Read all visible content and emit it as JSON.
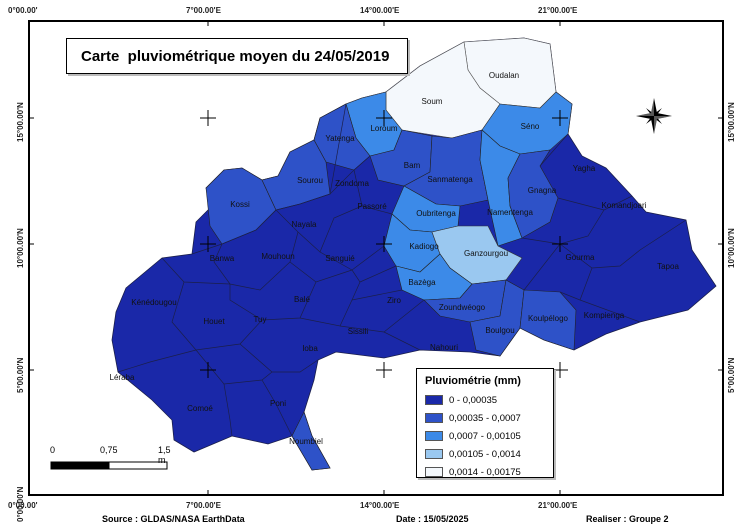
{
  "title": "Carte  pluviométrique moyen du 24/05/2019",
  "grid": {
    "top": [
      "0°00.00'",
      "7°00.00'E",
      "14°00.00'E",
      "21°00.00'E"
    ],
    "bottom": [
      "0°00.00'",
      "7°00.00'E",
      "14°00.00'E",
      "21°00.00'E"
    ],
    "left": [
      "15°00.00'N",
      "10°00.00'N",
      "5°00.00'N",
      "0°00.00'N"
    ],
    "right": [
      "15°00.00'N",
      "10°00.00'N",
      "5°00.00'N"
    ]
  },
  "legend": {
    "title": "Pluviométrie (mm)",
    "classes": [
      {
        "label": "0 - 0,00035",
        "color": "#1a28a8"
      },
      {
        "label": "0,00035 - 0,0007",
        "color": "#2e52c8"
      },
      {
        "label": "0,0007 - 0,00105",
        "color": "#3c8ae8"
      },
      {
        "label": "0,00105 - 0,0014",
        "color": "#9ac8f0"
      },
      {
        "label": "0,0014 - 0,00175",
        "color": "#f4f8fc"
      }
    ]
  },
  "provinces": [
    {
      "name": "Oudalan",
      "class": 4
    },
    {
      "name": "Soum",
      "class": 4
    },
    {
      "name": "Loroum",
      "class": 2
    },
    {
      "name": "Séno",
      "class": 2
    },
    {
      "name": "Yatenga",
      "class": 1
    },
    {
      "name": "Bam",
      "class": 1
    },
    {
      "name": "Sanmatenga",
      "class": 1
    },
    {
      "name": "Namentenga",
      "class": 2
    },
    {
      "name": "Yagha",
      "class": 0
    },
    {
      "name": "Gnagna",
      "class": 1
    },
    {
      "name": "Komandjoari",
      "class": 0
    },
    {
      "name": "Sourou",
      "class": 1
    },
    {
      "name": "Zondoma",
      "class": 0
    },
    {
      "name": "Kossi",
      "class": 1
    },
    {
      "name": "Passoré",
      "class": 0
    },
    {
      "name": "Oubritenga",
      "class": 2
    },
    {
      "name": "Kadiogo",
      "class": 2
    },
    {
      "name": "Ganzourgou",
      "class": 3
    },
    {
      "name": "Nayala",
      "class": 0
    },
    {
      "name": "Banwa",
      "class": 0
    },
    {
      "name": "Mouhoun",
      "class": 0
    },
    {
      "name": "Sanguié",
      "class": 0
    },
    {
      "name": "Gourma",
      "class": 0
    },
    {
      "name": "Tapoa",
      "class": 0
    },
    {
      "name": "Bazèga",
      "class": 2
    },
    {
      "name": "Kénédougou",
      "class": 0
    },
    {
      "name": "Balé",
      "class": 0
    },
    {
      "name": "Ziro",
      "class": 0
    },
    {
      "name": "Zoundwéogo",
      "class": 1
    },
    {
      "name": "Koulpélogo",
      "class": 1
    },
    {
      "name": "Kompienga",
      "class": 0
    },
    {
      "name": "Houet",
      "class": 0
    },
    {
      "name": "Tuy",
      "class": 0
    },
    {
      "name": "Sissili",
      "class": 0
    },
    {
      "name": "Boulgou",
      "class": 1
    },
    {
      "name": "Nahouri",
      "class": 0
    },
    {
      "name": "Ioba",
      "class": 0
    },
    {
      "name": "Léraba",
      "class": 0
    },
    {
      "name": "Comoé",
      "class": 0
    },
    {
      "name": "Poni",
      "class": 0
    },
    {
      "name": "Noumbiel",
      "class": 1
    }
  ],
  "scale": {
    "labels": [
      "0",
      "0,75",
      "1,5 m"
    ]
  },
  "footer": {
    "source": "Source : GLDAS/NASA EarthData",
    "date": "Date : 15/05/2025",
    "author": "Realiser : Groupe 2"
  }
}
